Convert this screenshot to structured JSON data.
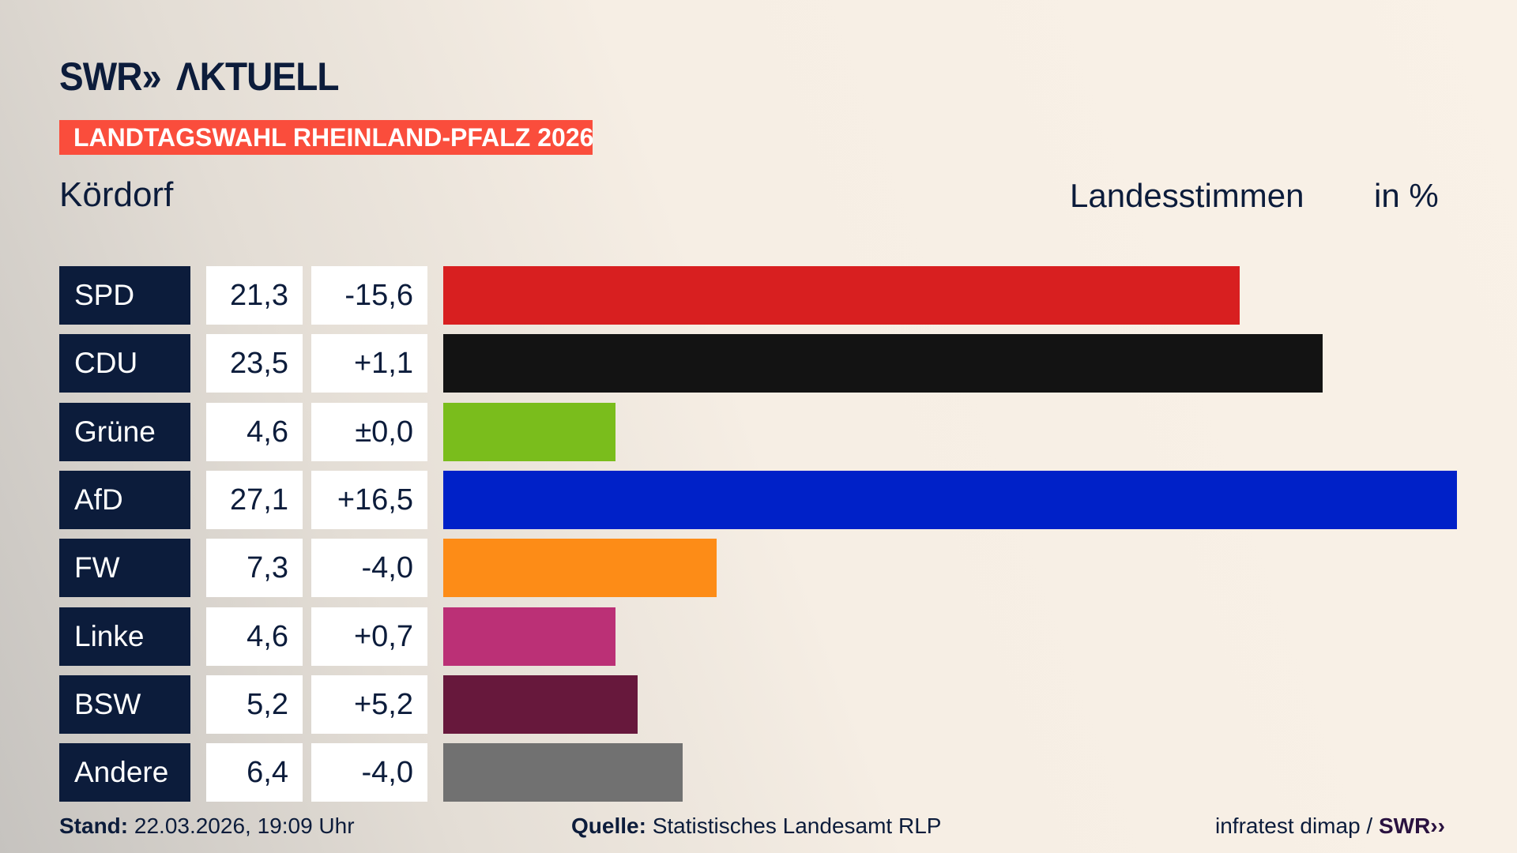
{
  "header": {
    "logo": "SWR» AKTUELL",
    "banner": "LANDTAGSWAHL RHEINLAND-PFALZ 2026",
    "place": "Kördorf",
    "measure": "Landesstimmen",
    "unit": "in %"
  },
  "chart_data": {
    "type": "bar",
    "orientation": "horizontal",
    "categories": [
      "SPD",
      "CDU",
      "Grüne",
      "AfD",
      "FW",
      "Linke",
      "BSW",
      "Andere"
    ],
    "values": [
      21.3,
      23.5,
      4.6,
      27.1,
      7.3,
      4.6,
      5.2,
      6.4
    ],
    "value_labels": [
      "21,3",
      "23,5",
      "4,6",
      "27,1",
      "7,3",
      "4,6",
      "5,2",
      "6,4"
    ],
    "diff_labels": [
      "-15,6",
      "+1,1",
      "±0,0",
      "+16,5",
      "-4,0",
      "+0,7",
      "+5,2",
      "-4,0"
    ],
    "colors": [
      "#d81f20",
      "#131313",
      "#7abd1c",
      "#0021c8",
      "#fd8c17",
      "#bb3076",
      "#67183c",
      "#717171"
    ],
    "xlim": [
      0,
      27.1
    ]
  },
  "footer": {
    "stand_label": "Stand:",
    "stand_value": "22.03.2026, 19:09 Uhr",
    "source_label": "Quelle:",
    "source_value": "Statistisches Landesamt RLP",
    "credit": "infratest dimap /",
    "credit_logo": "SWR»"
  }
}
